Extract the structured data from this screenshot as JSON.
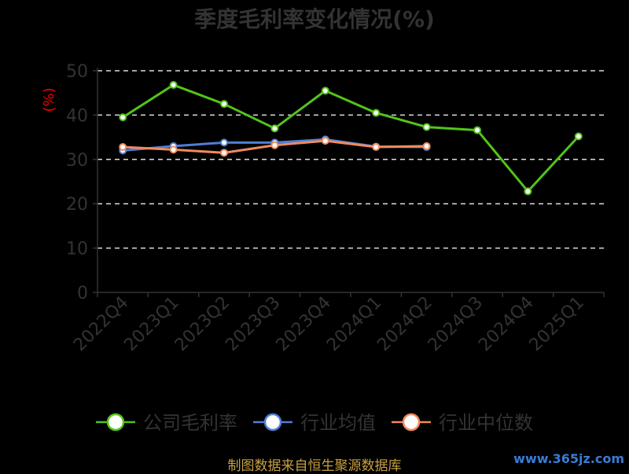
{
  "chart_data": {
    "type": "line",
    "title": "季度毛利率变化情况(%)",
    "ylabel": "(%)",
    "categories": [
      "2022Q4",
      "2023Q1",
      "2023Q2",
      "2023Q3",
      "2023Q4",
      "2024Q1",
      "2024Q2",
      "2024Q3",
      "2024Q4",
      "2025Q1"
    ],
    "ylim": [
      0,
      50
    ],
    "yticks": [
      0,
      10,
      20,
      30,
      40,
      50
    ],
    "grid": true,
    "legend_position": "bottom",
    "series": [
      {
        "name": "公司毛利率",
        "color": "#52c41a",
        "values": [
          39.5,
          46.8,
          42.5,
          37.0,
          45.5,
          40.5,
          37.3,
          36.6,
          22.8,
          35.2
        ]
      },
      {
        "name": "行业均值",
        "color": "#4f7fd6",
        "values": [
          32.0,
          33.0,
          33.8,
          33.8,
          34.5,
          32.9,
          32.8,
          null,
          null,
          null
        ]
      },
      {
        "name": "行业中位数",
        "color": "#f08a5d",
        "values": [
          32.8,
          32.2,
          31.5,
          33.2,
          34.2,
          32.8,
          33.0,
          null,
          null,
          null
        ]
      }
    ]
  },
  "footer": {
    "source": "制图数据来自恒生聚源数据库",
    "watermark": "www.365jz.com"
  }
}
